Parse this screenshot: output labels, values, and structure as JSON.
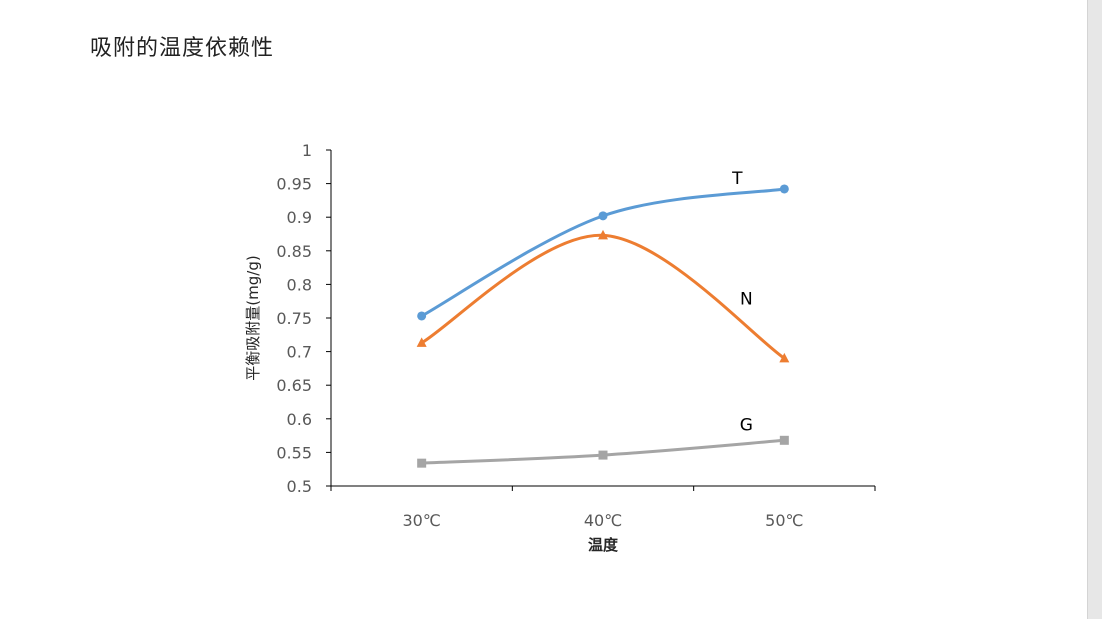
{
  "page": {
    "title": "吸附的温度依赖性"
  },
  "chart_data": {
    "type": "line",
    "smooth": true,
    "categories": [
      "30℃",
      "40℃",
      "50℃"
    ],
    "xlabel": "温度",
    "ylabel": "平衡吸附量(mg/g)",
    "ylim": [
      0.5,
      1.0
    ],
    "yticks": [
      0.5,
      0.55,
      0.6,
      0.65,
      0.7,
      0.75,
      0.8,
      0.85,
      0.9,
      0.95,
      1
    ],
    "ytick_labels": [
      "0.5",
      "0.55",
      "0.6",
      "0.65",
      "0.7",
      "0.75",
      "0.8",
      "0.85",
      "0.9",
      "0.95",
      "1"
    ],
    "grid": false,
    "legend": "none",
    "series": [
      {
        "name": "T",
        "values": [
          0.753,
          0.902,
          0.942
        ],
        "color": "#5b9bd5",
        "marker": "circle"
      },
      {
        "name": "N",
        "values": [
          0.713,
          0.873,
          0.69
        ],
        "color": "#ed7d31",
        "marker": "triangle"
      },
      {
        "name": "G",
        "values": [
          0.534,
          0.546,
          0.568
        ],
        "color": "#a5a5a5",
        "marker": "square"
      }
    ]
  }
}
